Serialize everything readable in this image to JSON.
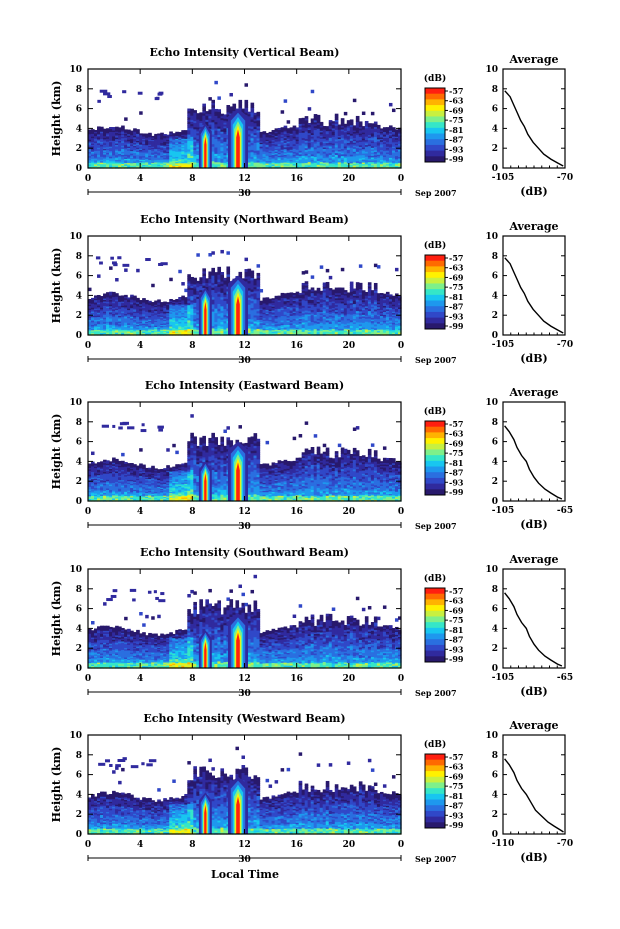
{
  "figure": {
    "xlabel": "Local Time"
  },
  "panels": [
    {
      "title": "Echo Intensity (Vertical Beam)"
    },
    {
      "title": "Echo Intensity (Northward Beam)"
    },
    {
      "title": "Echo Intensity (Eastward Beam)"
    },
    {
      "title": "Echo Intensity (Southward Beam)"
    },
    {
      "title": "Echo Intensity (Westward Beam)"
    }
  ],
  "colorbar": {
    "unit": "(dB)",
    "ticks": [
      "-57",
      "-63",
      "-69",
      "-75",
      "-81",
      "-87",
      "-93",
      "-99"
    ],
    "colors": [
      "#ff1f10",
      "#ff6a00",
      "#ffb300",
      "#fff100",
      "#c8f040",
      "#7ef08a",
      "#35e6c8",
      "#18c6f0",
      "#1e98ee",
      "#2a6fe0",
      "#3048c8",
      "#302a9e",
      "#28196c"
    ]
  },
  "chart_data": [
    {
      "type": "heatmap",
      "title": "Echo Intensity (Vertical Beam)",
      "ylabel": "Height (km)",
      "ylim": [
        0,
        10
      ],
      "yticks": [
        "0",
        "2",
        "4",
        "6",
        "8",
        "10"
      ],
      "xlabel": "Local Time",
      "xlim": [
        0,
        24
      ],
      "xticks": [
        "0",
        "4",
        "8",
        "12",
        "16",
        "20",
        "0"
      ],
      "date_labels": [
        "30",
        "Sep 2007"
      ],
      "colorbar_unit": "(dB)",
      "profile": {
        "title": "Average",
        "xlabel": "(dB)",
        "xticks": [
          "-105",
          "-70"
        ],
        "xlim": [
          -105,
          -70
        ],
        "ylim": [
          0,
          10
        ],
        "yticks": [
          "0",
          "2",
          "4",
          "6",
          "8",
          "10"
        ],
        "x": [
          -104,
          -101,
          -99,
          -97,
          -95,
          -93,
          -91,
          -88,
          -85,
          -82,
          -78,
          -74,
          -71
        ],
        "y": [
          7.8,
          7.2,
          6.4,
          5.6,
          4.8,
          4.2,
          3.4,
          2.6,
          2.0,
          1.4,
          0.9,
          0.5,
          0.2
        ]
      },
      "features": [
        {
          "local_time": 9.0,
          "top_km": 4.5
        },
        {
          "local_time": 11.5,
          "top_km": 6.0
        }
      ]
    },
    {
      "type": "heatmap",
      "title": "Echo Intensity (Northward Beam)",
      "ylabel": "Height (km)",
      "ylim": [
        0,
        10
      ],
      "yticks": [
        "0",
        "2",
        "4",
        "6",
        "8",
        "10"
      ],
      "xlabel": "Local Time",
      "xlim": [
        0,
        24
      ],
      "xticks": [
        "0",
        "4",
        "8",
        "12",
        "16",
        "20",
        "0"
      ],
      "date_labels": [
        "30",
        "Sep 2007"
      ],
      "colorbar_unit": "(dB)",
      "profile": {
        "title": "Average",
        "xlabel": "(dB)",
        "xticks": [
          "-105",
          "-70"
        ],
        "xlim": [
          -105,
          -70
        ],
        "ylim": [
          0,
          10
        ],
        "yticks": [
          "0",
          "2",
          "4",
          "6",
          "8",
          "10"
        ],
        "x": [
          -104,
          -101,
          -99,
          -97,
          -95,
          -93,
          -91,
          -88,
          -85,
          -82,
          -78,
          -74,
          -71
        ],
        "y": [
          7.8,
          7.2,
          6.4,
          5.6,
          4.8,
          4.2,
          3.4,
          2.6,
          2.0,
          1.4,
          0.9,
          0.5,
          0.2
        ]
      },
      "features": [
        {
          "local_time": 9.0,
          "top_km": 4.8
        },
        {
          "local_time": 11.5,
          "top_km": 6.0
        }
      ]
    },
    {
      "type": "heatmap",
      "title": "Echo Intensity (Eastward Beam)",
      "ylabel": "Height (km)",
      "ylim": [
        0,
        10
      ],
      "yticks": [
        "0",
        "2",
        "4",
        "6",
        "8",
        "10"
      ],
      "xlabel": "Local Time",
      "xlim": [
        0,
        24
      ],
      "xticks": [
        "0",
        "4",
        "8",
        "12",
        "16",
        "20",
        "0"
      ],
      "date_labels": [
        "30",
        "Sep 2007"
      ],
      "colorbar_unit": "(dB)",
      "profile": {
        "title": "Average",
        "xlabel": "(dB)",
        "xticks": [
          "-105",
          "-65"
        ],
        "xlim": [
          -105,
          -65
        ],
        "ylim": [
          0,
          10
        ],
        "yticks": [
          "0",
          "2",
          "4",
          "6",
          "8",
          "10"
        ],
        "x": [
          -104,
          -101,
          -98,
          -96,
          -93,
          -90,
          -88,
          -85,
          -82,
          -78,
          -74,
          -70,
          -67
        ],
        "y": [
          7.6,
          7.0,
          6.2,
          5.4,
          4.6,
          4.0,
          3.2,
          2.4,
          1.8,
          1.2,
          0.8,
          0.4,
          0.2
        ]
      },
      "features": [
        {
          "local_time": 9.0,
          "top_km": 4.0
        },
        {
          "local_time": 11.5,
          "top_km": 6.0
        }
      ]
    },
    {
      "type": "heatmap",
      "title": "Echo Intensity (Southward Beam)",
      "ylabel": "Height (km)",
      "ylim": [
        0,
        10
      ],
      "yticks": [
        "0",
        "2",
        "4",
        "6",
        "8",
        "10"
      ],
      "xlabel": "Local Time",
      "xlim": [
        0,
        24
      ],
      "xticks": [
        "0",
        "4",
        "8",
        "12",
        "16",
        "20",
        "0"
      ],
      "date_labels": [
        "30",
        "Sep 2007"
      ],
      "colorbar_unit": "(dB)",
      "profile": {
        "title": "Average",
        "xlabel": "(dB)",
        "xticks": [
          "-105",
          "-65"
        ],
        "xlim": [
          -105,
          -65
        ],
        "ylim": [
          0,
          10
        ],
        "yticks": [
          "0",
          "2",
          "4",
          "6",
          "8",
          "10"
        ],
        "x": [
          -104,
          -101,
          -98,
          -96,
          -93,
          -90,
          -88,
          -85,
          -82,
          -78,
          -74,
          -70,
          -67
        ],
        "y": [
          7.6,
          7.0,
          6.2,
          5.4,
          4.6,
          4.0,
          3.2,
          2.4,
          1.8,
          1.2,
          0.8,
          0.4,
          0.2
        ]
      },
      "features": [
        {
          "local_time": 9.0,
          "top_km": 3.8
        },
        {
          "local_time": 11.5,
          "top_km": 5.5
        }
      ]
    },
    {
      "type": "heatmap",
      "title": "Echo Intensity (Westward Beam)",
      "ylabel": "Height (km)",
      "ylim": [
        0,
        10
      ],
      "yticks": [
        "0",
        "2",
        "4",
        "6",
        "8",
        "10"
      ],
      "xlabel": "Local Time",
      "xlim": [
        0,
        24
      ],
      "xticks": [
        "0",
        "4",
        "8",
        "12",
        "16",
        "20",
        "0"
      ],
      "date_labels": [
        "30",
        "Sep 2007"
      ],
      "colorbar_unit": "(dB)",
      "profile": {
        "title": "Average",
        "xlabel": "(dB)",
        "xticks": [
          "-110",
          "-70"
        ],
        "xlim": [
          -110,
          -70
        ],
        "ylim": [
          0,
          10
        ],
        "yticks": [
          "0",
          "2",
          "4",
          "6",
          "8",
          "10"
        ],
        "x": [
          -109,
          -106,
          -103,
          -101,
          -98,
          -95,
          -92,
          -89,
          -85,
          -81,
          -77,
          -73,
          -71
        ],
        "y": [
          7.6,
          7.0,
          6.2,
          5.4,
          4.6,
          4.0,
          3.2,
          2.4,
          1.8,
          1.2,
          0.8,
          0.4,
          0.2
        ]
      },
      "features": [
        {
          "local_time": 9.0,
          "top_km": 4.2
        },
        {
          "local_time": 11.5,
          "top_km": 5.8
        }
      ]
    }
  ]
}
